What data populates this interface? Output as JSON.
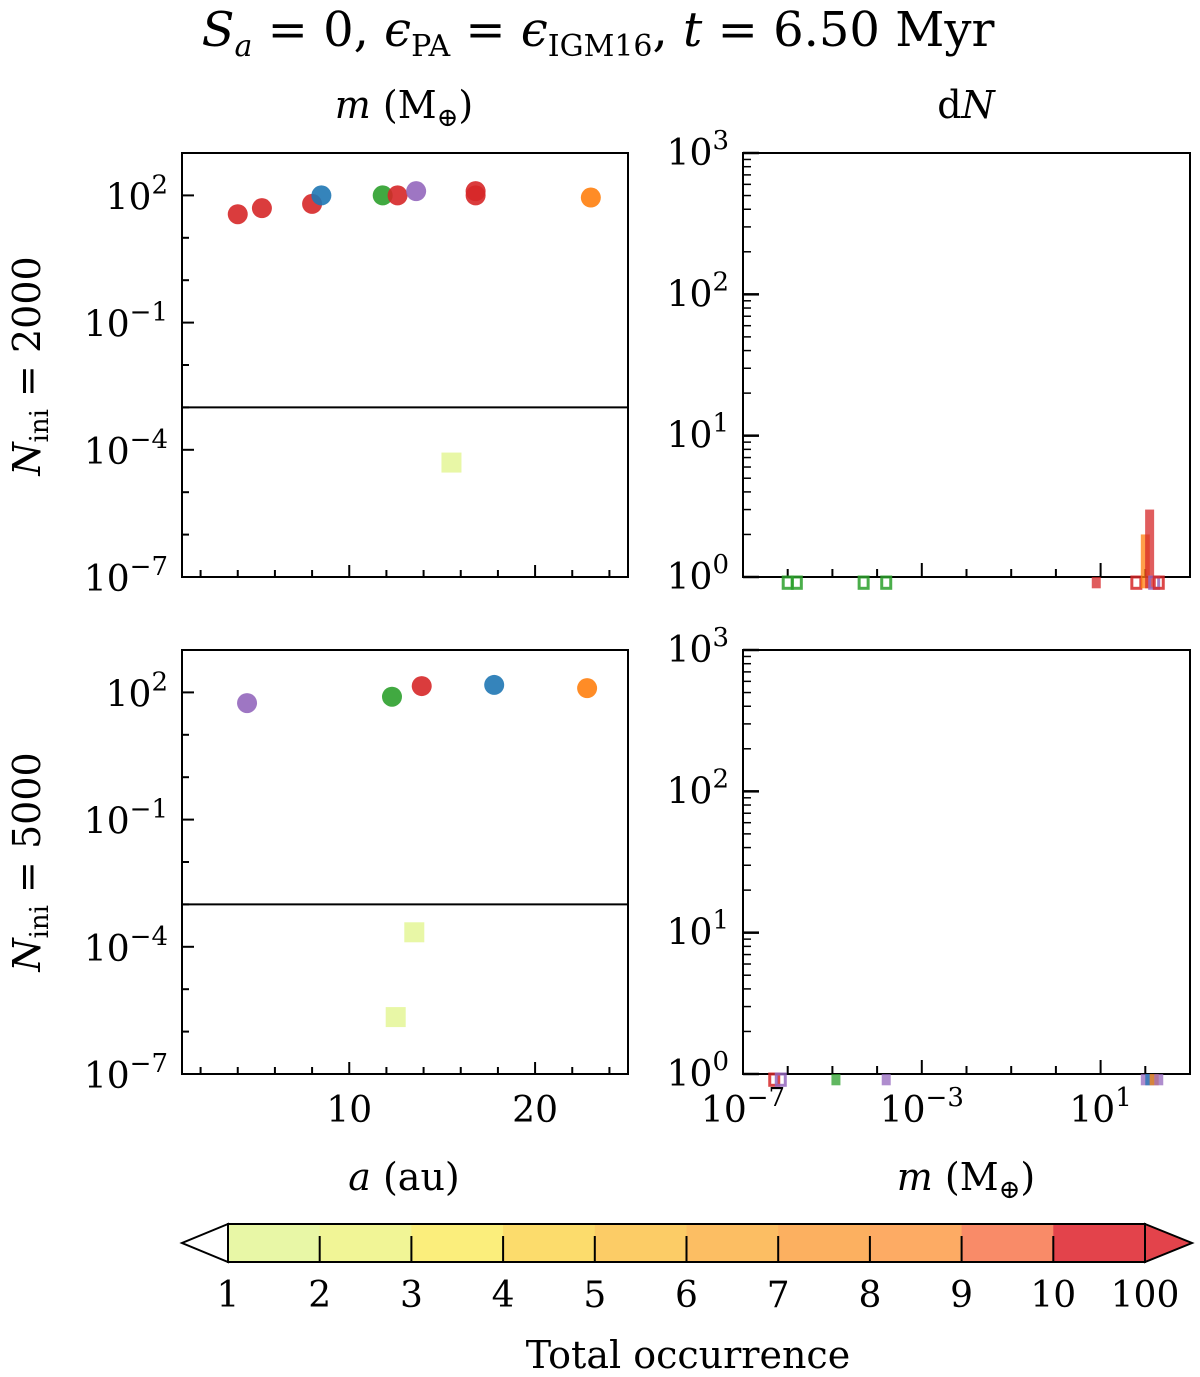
{
  "figure": {
    "title": {
      "pre": "S",
      "pre_sub": "a",
      "part1": " = 0, ",
      "eps1": "ϵ",
      "eps1_sub": "PA",
      "part2": " = ",
      "eps2": "ϵ",
      "eps2_sub": "IGM16",
      "part3": ", ",
      "t": "t",
      "part4": " = 6.50 Myr"
    },
    "col_headers": {
      "left": {
        "var": "m",
        "text": " (M",
        "sub": "⊕",
        "close": ")"
      },
      "right": {
        "text": "d",
        "var": "N"
      }
    },
    "row_labels": [
      {
        "var": "N",
        "sub": "ini",
        "rest": " = 2000"
      },
      {
        "var": "N",
        "sub": "ini",
        "rest": " = 5000"
      }
    ],
    "xlabels": {
      "left": {
        "var": "a",
        "rest": " (au)"
      },
      "right": {
        "var": "m",
        "text": " (M",
        "sub": "⊕",
        "close": ")"
      }
    },
    "colorbar": {
      "label": "Total occurrence",
      "ticks": [
        "1",
        "2",
        "3",
        "4",
        "5",
        "6",
        "7",
        "8",
        "9",
        "10",
        "100"
      ],
      "colors": [
        "#e8f7a6",
        "#f1f596",
        "#fbee7c",
        "#fcdc6c",
        "#fccc66",
        "#fcbe63",
        "#fcb060",
        "#fdab64",
        "#f98b68",
        "#e3434b"
      ]
    }
  },
  "chart_data": [
    {
      "id": "scatter-top",
      "type": "scatter",
      "row_label": "N_ini = 2000",
      "column_header": "m (M⊕)",
      "xlabel": "a (au)",
      "yscale": "log",
      "xlim": [
        1.0,
        25.0
      ],
      "ylim_log10": [
        -7,
        3
      ],
      "yticks": [
        "10^2",
        "10^-1",
        "10^-4",
        "10^-7"
      ],
      "xticks": [
        "10",
        "20"
      ],
      "threshold_log10": -3.0,
      "points": [
        {
          "a": 4.0,
          "m": 36,
          "color": "#d62728",
          "marker": "circle"
        },
        {
          "a": 5.3,
          "m": 50,
          "color": "#d62728",
          "marker": "circle"
        },
        {
          "a": 8.0,
          "m": 63,
          "color": "#d62728",
          "marker": "circle"
        },
        {
          "a": 8.5,
          "m": 100,
          "color": "#1f77b4",
          "marker": "circle"
        },
        {
          "a": 11.8,
          "m": 100,
          "color": "#2ca02c",
          "marker": "circle"
        },
        {
          "a": 12.6,
          "m": 100,
          "color": "#d62728",
          "marker": "circle"
        },
        {
          "a": 13.6,
          "m": 126,
          "color": "#9467bd",
          "marker": "circle"
        },
        {
          "a": 16.8,
          "m": 100,
          "color": "#d62728",
          "marker": "circle"
        },
        {
          "a": 16.8,
          "m": 126,
          "color": "#d62728",
          "marker": "circle"
        },
        {
          "a": 23.0,
          "m": 89,
          "color": "#ff7f0e",
          "marker": "circle"
        },
        {
          "a": 15.5,
          "m": 5e-05,
          "color": "#e8f7a6",
          "marker": "square"
        }
      ]
    },
    {
      "id": "hist-top",
      "type": "bar",
      "column_header": "dN",
      "xscale": "log",
      "yscale": "log",
      "xlim_log10": [
        -7,
        3
      ],
      "ylim_log10": [
        0,
        3
      ],
      "yticks": [
        "10^0",
        "10^1",
        "10^2",
        "10^3"
      ],
      "bars": [
        {
          "m": 1e-06,
          "count": 1,
          "color": "#2ca02c",
          "fill": false
        },
        {
          "m": 1.6e-06,
          "count": 1,
          "color": "#2ca02c",
          "fill": false
        },
        {
          "m": 5e-05,
          "count": 1,
          "color": "#2ca02c",
          "fill": false
        },
        {
          "m": 0.00016,
          "count": 1,
          "color": "#2ca02c",
          "fill": false
        },
        {
          "m": 8,
          "count": 1,
          "color": "#d62728",
          "fill": true
        },
        {
          "m": 63,
          "count": 1,
          "color": "#d62728",
          "fill": false
        },
        {
          "m": 100,
          "count": 2,
          "color": "#ff7f0e",
          "fill": true
        },
        {
          "m": 125,
          "count": 3,
          "color": "#d62728",
          "fill": true
        },
        {
          "m": 158,
          "count": 1,
          "color": "#9467bd",
          "fill": false
        },
        {
          "m": 200,
          "count": 1,
          "color": "#d62728",
          "fill": false
        }
      ]
    },
    {
      "id": "scatter-bottom",
      "type": "scatter",
      "row_label": "N_ini = 5000",
      "xlabel": "a (au)",
      "yscale": "log",
      "xlim": [
        1.0,
        25.0
      ],
      "ylim_log10": [
        -7,
        3
      ],
      "yticks": [
        "10^2",
        "10^-1",
        "10^-4",
        "10^-7"
      ],
      "xticks": [
        "10",
        "20"
      ],
      "threshold_log10": -3.0,
      "points": [
        {
          "a": 4.5,
          "m": 56,
          "color": "#9467bd",
          "marker": "circle"
        },
        {
          "a": 12.3,
          "m": 79,
          "color": "#2ca02c",
          "marker": "circle"
        },
        {
          "a": 13.9,
          "m": 141,
          "color": "#d62728",
          "marker": "circle"
        },
        {
          "a": 17.8,
          "m": 150,
          "color": "#1f77b4",
          "marker": "circle"
        },
        {
          "a": 22.8,
          "m": 126,
          "color": "#ff7f0e",
          "marker": "circle"
        },
        {
          "a": 13.5,
          "m": 0.00022,
          "color": "#e8f7a6",
          "marker": "square"
        },
        {
          "a": 12.5,
          "m": 2.2e-06,
          "color": "#e8f7a6",
          "marker": "square"
        }
      ]
    },
    {
      "id": "hist-bottom",
      "type": "bar",
      "xlabel": "m (M⊕)",
      "xscale": "log",
      "yscale": "log",
      "xlim_log10": [
        -7,
        3
      ],
      "ylim_log10": [
        0,
        3
      ],
      "yticks": [
        "10^0",
        "10^1",
        "10^2",
        "10^3"
      ],
      "xticks": [
        "10^-7",
        "10^-3",
        "10^1"
      ],
      "bars": [
        {
          "m": 5e-07,
          "count": 1,
          "color": "#d62728",
          "fill": false
        },
        {
          "m": 7e-07,
          "count": 1,
          "color": "#9467bd",
          "fill": false
        },
        {
          "m": 1.2e-05,
          "count": 1,
          "color": "#2ca02c",
          "fill": true
        },
        {
          "m": 0.00016,
          "count": 1,
          "color": "#9467bd",
          "fill": true
        },
        {
          "m": 100,
          "count": 1,
          "color": "#9467bd",
          "fill": true
        },
        {
          "m": 126,
          "count": 1,
          "color": "#1f77b4",
          "fill": true
        },
        {
          "m": 158,
          "count": 1,
          "color": "#ff7f0e",
          "fill": true
        },
        {
          "m": 200,
          "count": 1,
          "color": "#9467bd",
          "fill": true
        }
      ]
    }
  ]
}
